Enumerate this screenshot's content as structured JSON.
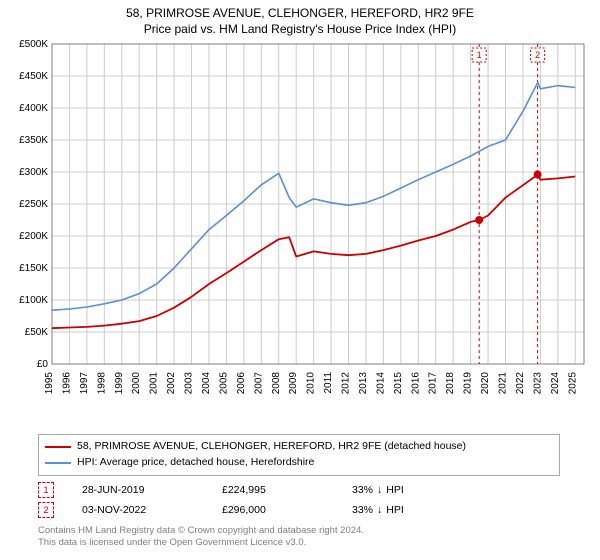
{
  "title_line1": "58, PRIMROSE AVENUE, CLEHONGER, HEREFORD, HR2 9FE",
  "title_line2": "Price paid vs. HM Land Registry's House Price Index (HPI)",
  "chart": {
    "type": "line",
    "background_color": "#ffffff",
    "plot_border_color": "#808080",
    "grid_color": "#cccccc",
    "axis_font_size": 10,
    "axis_text_color": "#000000",
    "x_years": [
      1995,
      1996,
      1997,
      1998,
      1999,
      2000,
      2001,
      2002,
      2003,
      2004,
      2005,
      2006,
      2007,
      2008,
      2009,
      2010,
      2011,
      2012,
      2013,
      2014,
      2015,
      2016,
      2017,
      2018,
      2019,
      2020,
      2021,
      2022,
      2023,
      2024,
      2025
    ],
    "xlim": [
      1995,
      2025.5
    ],
    "ylim": [
      0,
      500000
    ],
    "ytick_step": 50000,
    "ytick_labels": [
      "£0",
      "£50K",
      "£100K",
      "£150K",
      "£200K",
      "£250K",
      "£300K",
      "£350K",
      "£400K",
      "£450K",
      "£500K"
    ],
    "series": [
      {
        "name": "58, PRIMROSE AVENUE, CLEHONGER, HEREFORD, HR2 9FE (detached house)",
        "color": "#cc0000",
        "line_width": 1.8,
        "values": [
          56000,
          57000,
          58000,
          60000,
          63000,
          67000,
          75000,
          88000,
          105000,
          125000,
          142000,
          160000,
          178000,
          195000,
          198000,
          168000,
          176000,
          172000,
          170000,
          172000,
          178000,
          185000,
          193000,
          200000,
          210000,
          222000,
          225000,
          232000,
          260000,
          296000,
          288000,
          290000,
          293000
        ],
        "x_fracs": [
          1995,
          1996,
          1997,
          1998,
          1999,
          2000,
          2001,
          2002,
          2003,
          2004,
          2005,
          2006,
          2007,
          2008,
          2008.6,
          2009,
          2010,
          2011,
          2012,
          2013,
          2014,
          2015,
          2016,
          2017,
          2018,
          2019,
          2019.5,
          2020,
          2021,
          2022.85,
          2023,
          2024,
          2025
        ]
      },
      {
        "name": "HPI: Average price, detached house, Herefordshire",
        "color": "#5b8fd6",
        "line_width": 1.6,
        "values": [
          84000,
          86000,
          89000,
          94000,
          100000,
          110000,
          125000,
          150000,
          180000,
          210000,
          232000,
          255000,
          280000,
          298000,
          260000,
          245000,
          258000,
          252000,
          248000,
          252000,
          262000,
          275000,
          288000,
          300000,
          312000,
          325000,
          340000,
          350000,
          395000,
          440000,
          430000,
          435000,
          432000
        ],
        "x_fracs": [
          1995,
          1996,
          1997,
          1998,
          1999,
          2000,
          2001,
          2002,
          2003,
          2004,
          2005,
          2006,
          2007,
          2008,
          2008.6,
          2009,
          2010,
          2011,
          2012,
          2013,
          2014,
          2015,
          2016,
          2017,
          2018,
          2019,
          2020,
          2021,
          2022,
          2022.85,
          2023,
          2024,
          2025
        ]
      }
    ],
    "sale_markers": [
      {
        "n": "1",
        "x": 2019.49,
        "y": 224995,
        "vline_color": "#cc0000",
        "dot_color": "#cc0000"
      },
      {
        "n": "2",
        "x": 2022.84,
        "y": 296000,
        "vline_color": "#cc0000",
        "dot_color": "#cc0000"
      }
    ]
  },
  "legend": {
    "rows": [
      {
        "color": "#cc0000",
        "label": "58, PRIMROSE AVENUE, CLEHONGER, HEREFORD, HR2 9FE (detached house)"
      },
      {
        "color": "#5b8fd6",
        "label": "HPI: Average price, detached house, Herefordshire"
      }
    ]
  },
  "sales": [
    {
      "n": "1",
      "date": "28-JUN-2019",
      "price": "£224,995",
      "delta": "33%",
      "arrow": "↓",
      "vs": "HPI"
    },
    {
      "n": "2",
      "date": "03-NOV-2022",
      "price": "£296,000",
      "delta": "33%",
      "arrow": "↓",
      "vs": "HPI"
    }
  ],
  "footer": {
    "line1": "Contains HM Land Registry data © Crown copyright and database right 2024.",
    "line2": "This data is licensed under the Open Government Licence v3.0."
  }
}
